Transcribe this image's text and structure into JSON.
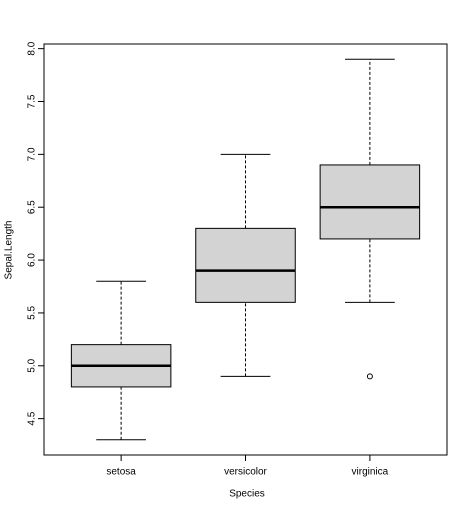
{
  "chart_data": {
    "type": "box",
    "x_label": "Species",
    "y_label": "Sepal.Length",
    "categories": [
      "setosa",
      "versicolor",
      "virginica"
    ],
    "boxes": [
      {
        "min": 4.3,
        "q1": 4.8,
        "median": 5.0,
        "q3": 5.2,
        "max": 5.8,
        "outliers": []
      },
      {
        "min": 4.9,
        "q1": 5.6,
        "median": 5.9,
        "q3": 6.3,
        "max": 7.0,
        "outliers": []
      },
      {
        "min": 5.6,
        "q1": 6.2,
        "median": 6.5,
        "q3": 6.9,
        "max": 7.9,
        "outliers": [
          4.9
        ]
      }
    ],
    "color": "#d3d3d3",
    "ylim": [
      4.156,
      8.044
    ],
    "yticks": [
      4.5,
      {
        "value": 5.0,
        "label": "5.0"
      },
      5.5,
      {
        "value": 6.0,
        "label": "6.0"
      },
      6.5,
      {
        "value": 7.0,
        "label": "7.0"
      },
      7.5,
      {
        "value": 8.0,
        "label": "8.0"
      }
    ]
  }
}
